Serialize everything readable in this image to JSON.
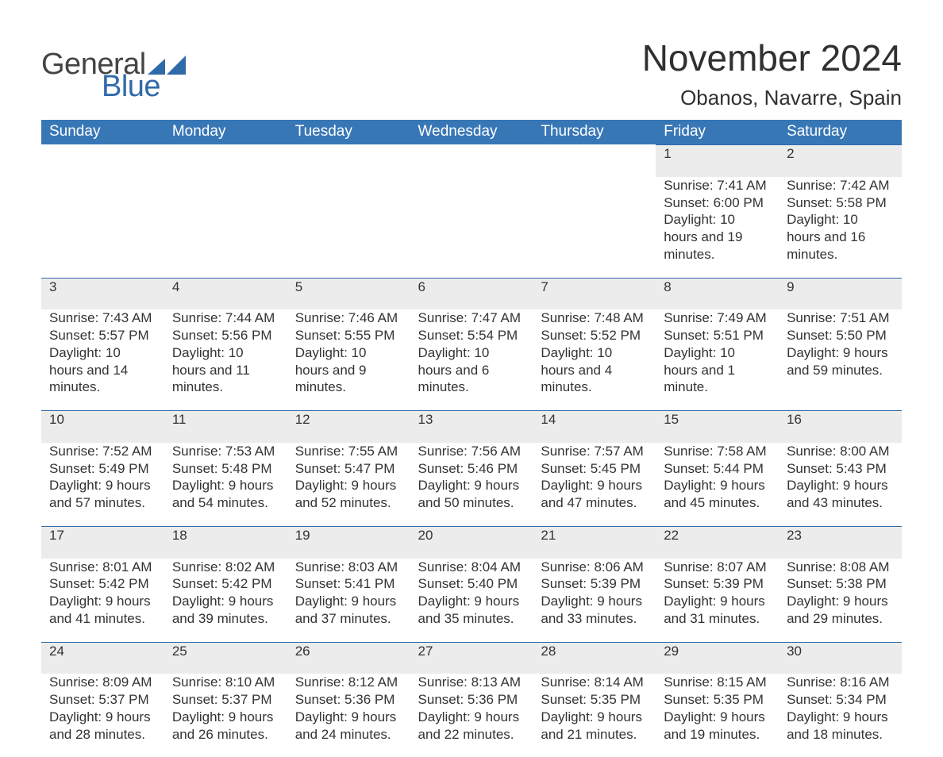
{
  "brand": {
    "word1": "General",
    "word2": "Blue",
    "triangle_color": "#2f6aa9"
  },
  "title": "November 2024",
  "location": "Obanos, Navarre, Spain",
  "weekday_labels": [
    "Sunday",
    "Monday",
    "Tuesday",
    "Wednesday",
    "Thursday",
    "Friday",
    "Saturday"
  ],
  "colors": {
    "header_bg": "#3877b6",
    "row_border": "#2f6aa9",
    "row_grey": "#ececec",
    "brand_blue": "#306aaa"
  },
  "weeks": [
    [
      null,
      null,
      null,
      null,
      null,
      {
        "day": "1",
        "sunrise": "Sunrise: 7:41 AM",
        "sunset": "Sunset: 6:00 PM",
        "daylight": "Daylight: 10 hours and 19 minutes."
      },
      {
        "day": "2",
        "sunrise": "Sunrise: 7:42 AM",
        "sunset": "Sunset: 5:58 PM",
        "daylight": "Daylight: 10 hours and 16 minutes."
      }
    ],
    [
      {
        "day": "3",
        "sunrise": "Sunrise: 7:43 AM",
        "sunset": "Sunset: 5:57 PM",
        "daylight": "Daylight: 10 hours and 14 minutes."
      },
      {
        "day": "4",
        "sunrise": "Sunrise: 7:44 AM",
        "sunset": "Sunset: 5:56 PM",
        "daylight": "Daylight: 10 hours and 11 minutes."
      },
      {
        "day": "5",
        "sunrise": "Sunrise: 7:46 AM",
        "sunset": "Sunset: 5:55 PM",
        "daylight": "Daylight: 10 hours and 9 minutes."
      },
      {
        "day": "6",
        "sunrise": "Sunrise: 7:47 AM",
        "sunset": "Sunset: 5:54 PM",
        "daylight": "Daylight: 10 hours and 6 minutes."
      },
      {
        "day": "7",
        "sunrise": "Sunrise: 7:48 AM",
        "sunset": "Sunset: 5:52 PM",
        "daylight": "Daylight: 10 hours and 4 minutes."
      },
      {
        "day": "8",
        "sunrise": "Sunrise: 7:49 AM",
        "sunset": "Sunset: 5:51 PM",
        "daylight": "Daylight: 10 hours and 1 minute."
      },
      {
        "day": "9",
        "sunrise": "Sunrise: 7:51 AM",
        "sunset": "Sunset: 5:50 PM",
        "daylight": "Daylight: 9 hours and 59 minutes."
      }
    ],
    [
      {
        "day": "10",
        "sunrise": "Sunrise: 7:52 AM",
        "sunset": "Sunset: 5:49 PM",
        "daylight": "Daylight: 9 hours and 57 minutes."
      },
      {
        "day": "11",
        "sunrise": "Sunrise: 7:53 AM",
        "sunset": "Sunset: 5:48 PM",
        "daylight": "Daylight: 9 hours and 54 minutes."
      },
      {
        "day": "12",
        "sunrise": "Sunrise: 7:55 AM",
        "sunset": "Sunset: 5:47 PM",
        "daylight": "Daylight: 9 hours and 52 minutes."
      },
      {
        "day": "13",
        "sunrise": "Sunrise: 7:56 AM",
        "sunset": "Sunset: 5:46 PM",
        "daylight": "Daylight: 9 hours and 50 minutes."
      },
      {
        "day": "14",
        "sunrise": "Sunrise: 7:57 AM",
        "sunset": "Sunset: 5:45 PM",
        "daylight": "Daylight: 9 hours and 47 minutes."
      },
      {
        "day": "15",
        "sunrise": "Sunrise: 7:58 AM",
        "sunset": "Sunset: 5:44 PM",
        "daylight": "Daylight: 9 hours and 45 minutes."
      },
      {
        "day": "16",
        "sunrise": "Sunrise: 8:00 AM",
        "sunset": "Sunset: 5:43 PM",
        "daylight": "Daylight: 9 hours and 43 minutes."
      }
    ],
    [
      {
        "day": "17",
        "sunrise": "Sunrise: 8:01 AM",
        "sunset": "Sunset: 5:42 PM",
        "daylight": "Daylight: 9 hours and 41 minutes."
      },
      {
        "day": "18",
        "sunrise": "Sunrise: 8:02 AM",
        "sunset": "Sunset: 5:42 PM",
        "daylight": "Daylight: 9 hours and 39 minutes."
      },
      {
        "day": "19",
        "sunrise": "Sunrise: 8:03 AM",
        "sunset": "Sunset: 5:41 PM",
        "daylight": "Daylight: 9 hours and 37 minutes."
      },
      {
        "day": "20",
        "sunrise": "Sunrise: 8:04 AM",
        "sunset": "Sunset: 5:40 PM",
        "daylight": "Daylight: 9 hours and 35 minutes."
      },
      {
        "day": "21",
        "sunrise": "Sunrise: 8:06 AM",
        "sunset": "Sunset: 5:39 PM",
        "daylight": "Daylight: 9 hours and 33 minutes."
      },
      {
        "day": "22",
        "sunrise": "Sunrise: 8:07 AM",
        "sunset": "Sunset: 5:39 PM",
        "daylight": "Daylight: 9 hours and 31 minutes."
      },
      {
        "day": "23",
        "sunrise": "Sunrise: 8:08 AM",
        "sunset": "Sunset: 5:38 PM",
        "daylight": "Daylight: 9 hours and 29 minutes."
      }
    ],
    [
      {
        "day": "24",
        "sunrise": "Sunrise: 8:09 AM",
        "sunset": "Sunset: 5:37 PM",
        "daylight": "Daylight: 9 hours and 28 minutes."
      },
      {
        "day": "25",
        "sunrise": "Sunrise: 8:10 AM",
        "sunset": "Sunset: 5:37 PM",
        "daylight": "Daylight: 9 hours and 26 minutes."
      },
      {
        "day": "26",
        "sunrise": "Sunrise: 8:12 AM",
        "sunset": "Sunset: 5:36 PM",
        "daylight": "Daylight: 9 hours and 24 minutes."
      },
      {
        "day": "27",
        "sunrise": "Sunrise: 8:13 AM",
        "sunset": "Sunset: 5:36 PM",
        "daylight": "Daylight: 9 hours and 22 minutes."
      },
      {
        "day": "28",
        "sunrise": "Sunrise: 8:14 AM",
        "sunset": "Sunset: 5:35 PM",
        "daylight": "Daylight: 9 hours and 21 minutes."
      },
      {
        "day": "29",
        "sunrise": "Sunrise: 8:15 AM",
        "sunset": "Sunset: 5:35 PM",
        "daylight": "Daylight: 9 hours and 19 minutes."
      },
      {
        "day": "30",
        "sunrise": "Sunrise: 8:16 AM",
        "sunset": "Sunset: 5:34 PM",
        "daylight": "Daylight: 9 hours and 18 minutes."
      }
    ]
  ]
}
